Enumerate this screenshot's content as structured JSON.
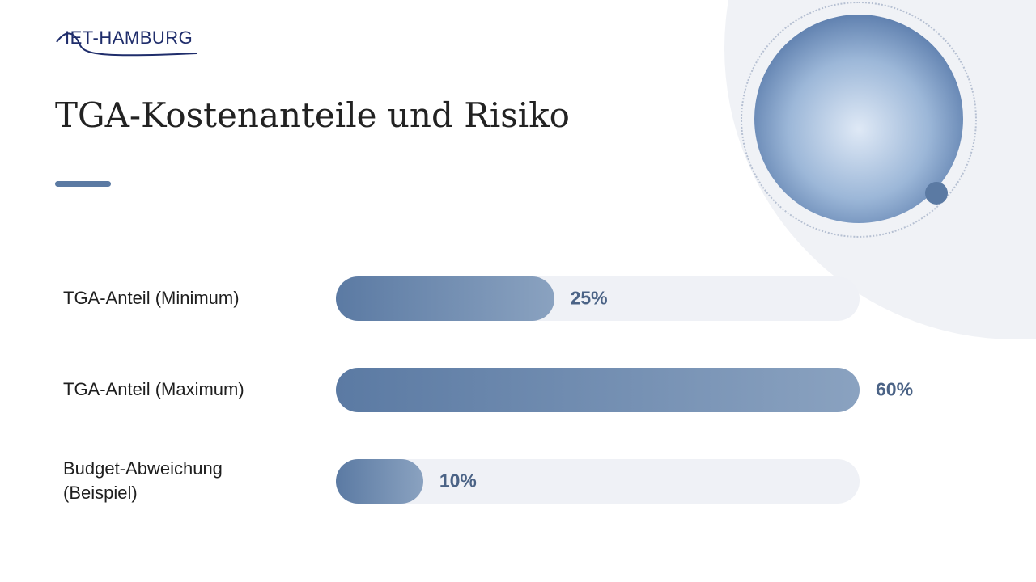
{
  "logo": "IET-HAMBURG",
  "chart_data": {
    "type": "bar",
    "orientation": "horizontal",
    "title": "TGA-Kostenanteile und Risiko",
    "categories": [
      "TGA-Anteil (Minimum)",
      "TGA-Anteil (Maximum)",
      "Budget-Abweichung (Beispiel)"
    ],
    "values": [
      25,
      60,
      10
    ],
    "value_labels": [
      "25%",
      "60%",
      "10%"
    ],
    "xlim": [
      0,
      60
    ],
    "color": "#5b7aa3"
  }
}
